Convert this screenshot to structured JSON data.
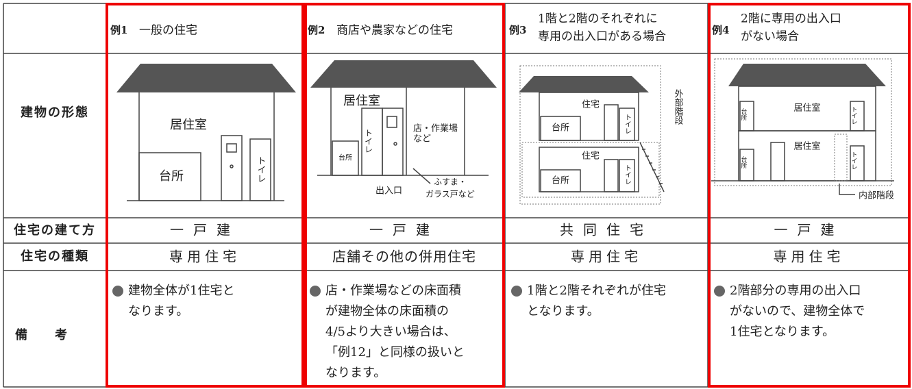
{
  "row_labels": [
    "建物の形態",
    "住宅の建て方",
    "住宅の種類",
    "備考"
  ],
  "columns": [
    {
      "number": "例1",
      "title": [
        "一般の住宅"
      ],
      "diagram": [
        "居住室",
        "台所",
        "トイレ"
      ],
      "build": "一戸建",
      "type": "専用住宅",
      "remarks": [
        "建物全体が1住宅と",
        "なります。"
      ]
    },
    {
      "number": "例2",
      "title": [
        "商店や農家などの住宅"
      ],
      "diagram": [
        "居住室",
        "トイレ",
        "台所",
        "店・作業場",
        "など",
        "出入口",
        "ふすま・",
        "ガラス戸など"
      ],
      "build": "一戸建",
      "type": "店舗その他の併用住宅",
      "remarks": [
        "店・作業場などの床面積",
        "が建物全体の床面積の",
        "4/5より大きい場合は、",
        "「例12」と同様の扱いと",
        "なります。"
      ]
    },
    {
      "number": "例3",
      "title": [
        "1階と2階のそれぞれに",
        "専用の出入口がある場合"
      ],
      "diagram": [
        "住宅",
        "台所",
        "トイレ",
        "住宅",
        "台所",
        "トイレ",
        "外部階段"
      ],
      "build": "共同住宅",
      "type": "専用住宅",
      "remarks": [
        "1階と2階それぞれが住宅",
        "となります。"
      ]
    },
    {
      "number": "例4",
      "title": [
        "2階に専用の出入口",
        "がない場合"
      ],
      "diagram": [
        "台所",
        "居住室",
        "トイレ",
        "台所",
        "居住室",
        "トイレ",
        "内部階段"
      ],
      "build": "一戸建",
      "type": "専用住宅",
      "remarks": [
        "2階部分の専用の出入口",
        "がないので、建物全体で",
        "1住宅となります。"
      ]
    }
  ]
}
